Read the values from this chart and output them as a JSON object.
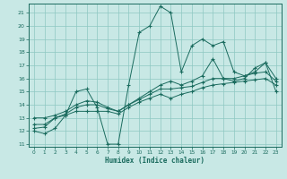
{
  "xlabel": "Humidex (Indice chaleur)",
  "xlim": [
    -0.5,
    23.5
  ],
  "ylim": [
    10.8,
    21.7
  ],
  "yticks": [
    11,
    12,
    13,
    14,
    15,
    16,
    17,
    18,
    19,
    20,
    21
  ],
  "xticks": [
    0,
    1,
    2,
    3,
    4,
    5,
    6,
    7,
    8,
    9,
    10,
    11,
    12,
    13,
    14,
    15,
    16,
    17,
    18,
    19,
    20,
    21,
    22,
    23
  ],
  "bg_color": "#c8e8e5",
  "line_color": "#1a6b5e",
  "grid_color": "#8ec8c2",
  "series_main": [
    12.0,
    11.8,
    12.2,
    13.2,
    15.0,
    15.2,
    13.8,
    11.0,
    11.0,
    15.5,
    19.5,
    20.0,
    21.5,
    21.0,
    16.5,
    18.5,
    19.0,
    18.5,
    18.8,
    16.5,
    16.2,
    16.5,
    17.2,
    15.0
  ],
  "series_a": [
    12.2,
    12.3,
    13.0,
    13.2,
    13.5,
    13.5,
    13.5,
    13.5,
    13.3,
    13.8,
    14.2,
    14.5,
    14.8,
    14.5,
    14.8,
    15.0,
    15.3,
    15.5,
    15.6,
    15.7,
    15.8,
    15.9,
    16.0,
    15.5
  ],
  "series_b": [
    12.5,
    12.5,
    13.0,
    13.3,
    13.8,
    14.0,
    14.0,
    13.7,
    13.5,
    14.0,
    14.4,
    14.8,
    15.2,
    15.2,
    15.3,
    15.4,
    15.7,
    16.0,
    16.0,
    16.0,
    16.2,
    16.4,
    16.5,
    15.8
  ],
  "series_c": [
    13.0,
    13.0,
    13.2,
    13.5,
    14.0,
    14.3,
    14.2,
    13.8,
    13.5,
    14.0,
    14.5,
    15.0,
    15.5,
    15.8,
    15.5,
    15.8,
    16.2,
    17.5,
    16.0,
    15.8,
    16.0,
    16.8,
    17.2,
    16.0
  ]
}
